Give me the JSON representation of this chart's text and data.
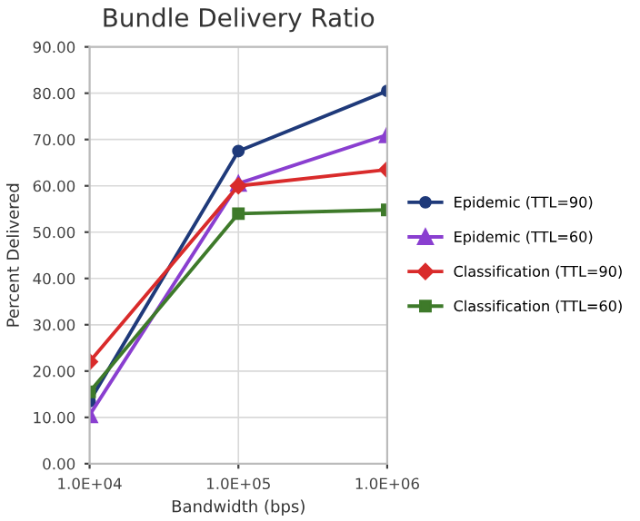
{
  "chart_data": {
    "type": "line",
    "title": "Bundle Delivery Ratio",
    "xlabel": "Bandwidth (bps)",
    "ylabel": "Percent Delivered",
    "x": [
      10000,
      100000,
      1000000
    ],
    "log": "x",
    "xlim": [
      10000,
      1000000
    ],
    "xticks": [
      {
        "value": 10000,
        "label": "1.0E+04"
      },
      {
        "value": 100000,
        "label": "1.0E+05"
      },
      {
        "value": 1000000,
        "label": "1.0E+06"
      }
    ],
    "ylim": [
      0,
      90
    ],
    "yticks": [
      {
        "value": 0,
        "label": "0.00"
      },
      {
        "value": 10,
        "label": "10.00"
      },
      {
        "value": 20,
        "label": "20.00"
      },
      {
        "value": 30,
        "label": "30.00"
      },
      {
        "value": 40,
        "label": "40.00"
      },
      {
        "value": 50,
        "label": "50.00"
      },
      {
        "value": 60,
        "label": "60.00"
      },
      {
        "value": 70,
        "label": "70.00"
      },
      {
        "value": 80,
        "label": "80.00"
      },
      {
        "value": 90,
        "label": "90.00"
      }
    ],
    "grid": true,
    "legend": "right",
    "series": [
      {
        "name": "Epidemic (TTL=90)",
        "color": "#1f3a7a",
        "marker": "circle",
        "values": [
          13.5,
          67.5,
          80.5
        ]
      },
      {
        "name": "Epidemic (TTL=60)",
        "color": "#8a3fd0",
        "marker": "triangle",
        "values": [
          10.5,
          60.5,
          71.0
        ]
      },
      {
        "name": "Classification (TTL=90)",
        "color": "#d92b2b",
        "marker": "diamond",
        "values": [
          22.0,
          60.0,
          63.5
        ]
      },
      {
        "name": "Classification (TTL=60)",
        "color": "#3e7a2a",
        "marker": "square",
        "values": [
          15.5,
          54.0,
          54.8
        ]
      }
    ]
  }
}
